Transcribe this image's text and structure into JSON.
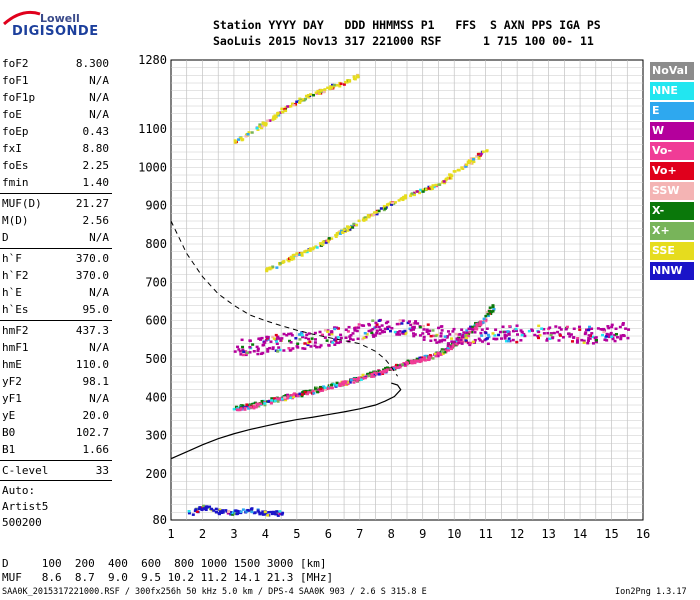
{
  "logo": {
    "line1": "Lowell",
    "line2": "DIGISONDE"
  },
  "header": {
    "line1": "Station YYYY DAY   DDD HHMMSS P1   FFS  S AXN PPS IGA PS",
    "line2": "SaoLuis 2015 Nov13 317 221000 RSF      1 715 100 00- 11"
  },
  "params": [
    {
      "name": "foF2",
      "value": "8.300"
    },
    {
      "name": "foF1",
      "value": "N/A"
    },
    {
      "name": "foF1p",
      "value": "N/A"
    },
    {
      "name": "foE",
      "value": "N/A"
    },
    {
      "name": "foEp",
      "value": "0.43"
    },
    {
      "name": "fxI",
      "value": "8.80"
    },
    {
      "name": "foEs",
      "value": "2.25"
    },
    {
      "name": "fmin",
      "value": "1.40"
    },
    {
      "name": "MUF(D)",
      "value": "21.27"
    },
    {
      "name": "M(D)",
      "value": "2.56"
    },
    {
      "name": "D",
      "value": "N/A"
    },
    {
      "name": "h`F",
      "value": "370.0"
    },
    {
      "name": "h`F2",
      "value": "370.0"
    },
    {
      "name": "h`E",
      "value": "N/A"
    },
    {
      "name": "h`Es",
      "value": "95.0"
    },
    {
      "name": "hmF2",
      "value": "437.3"
    },
    {
      "name": "hmF1",
      "value": "N/A"
    },
    {
      "name": "hmE",
      "value": "110.0"
    },
    {
      "name": "yF2",
      "value": "98.1"
    },
    {
      "name": "yF1",
      "value": "N/A"
    },
    {
      "name": "yE",
      "value": "20.0"
    },
    {
      "name": "B0",
      "value": "102.7"
    },
    {
      "name": "B1",
      "value": "1.66"
    },
    {
      "name": "C-level",
      "value": "33"
    }
  ],
  "autoscaling": {
    "line1": "Auto:",
    "line2": "Artist5",
    "line3": "500200"
  },
  "legend": [
    {
      "label": "NoVal",
      "bg": "#8c8c8c",
      "fg": "#ffffff"
    },
    {
      "label": "NNE",
      "bg": "#22e6f0",
      "fg": "#ffffff"
    },
    {
      "label": "E",
      "bg": "#2ea8ef",
      "fg": "#ffffff"
    },
    {
      "label": "W",
      "bg": "#b4009c",
      "fg": "#ffffff"
    },
    {
      "label": "Vo-",
      "bg": "#f03c96",
      "fg": "#ffffff"
    },
    {
      "label": "Vo+",
      "bg": "#e0001c",
      "fg": "#ffffff"
    },
    {
      "label": "SSW",
      "bg": "#f4b4b4",
      "fg": "#ffffff"
    },
    {
      "label": "X-",
      "bg": "#0a780a",
      "fg": "#ffffff"
    },
    {
      "label": "X+",
      "bg": "#78b45a",
      "fg": "#ffffff"
    },
    {
      "label": "SSE",
      "bg": "#e6dc1e",
      "fg": "#ffffff"
    },
    {
      "label": "NNW",
      "bg": "#1a14c8",
      "fg": "#ffffff"
    }
  ],
  "footer": {
    "line1": "D     100  200  400  600  800 1000 1500 3000 [km]",
    "line2": "MUF   8.6  8.7  9.0  9.5 10.2 11.2 14.1 21.3 [MHz]",
    "line3": "SAA0K_2015317221000.RSF / 300fx256h 50 kHz 5.0 km / DPS-4 SAA0K 903 / 2.6 S 315.8 E",
    "version": "Ion2Png 1.3.17"
  },
  "chart_data": {
    "type": "scatter",
    "x_ticks": [
      "1",
      "2",
      "3",
      "4",
      "5",
      "6",
      "7",
      "8",
      "9",
      "10",
      "11",
      "12",
      "13",
      "14",
      "15",
      "16"
    ],
    "y_ticks": [
      "80",
      "200",
      "300",
      "400",
      "500",
      "600",
      "700",
      "800",
      "900",
      "1000",
      "1100",
      "1280"
    ],
    "xlim": [
      1,
      16
    ],
    "ylim": [
      80,
      1280
    ],
    "grid": true,
    "legend_position": "right",
    "profile_line": [
      [
        1.0,
        240
      ],
      [
        1.5,
        258
      ],
      [
        2.0,
        276
      ],
      [
        2.5,
        292
      ],
      [
        3.0,
        305
      ],
      [
        3.5,
        316
      ],
      [
        4.0,
        325
      ],
      [
        4.5,
        334
      ],
      [
        5.0,
        342
      ],
      [
        5.5,
        348
      ],
      [
        6.0,
        355
      ],
      [
        6.5,
        362
      ],
      [
        7.0,
        370
      ],
      [
        7.5,
        380
      ],
      [
        7.8,
        390
      ],
      [
        8.1,
        402
      ],
      [
        8.3,
        420
      ],
      [
        8.2,
        432
      ],
      [
        8.0,
        437.3
      ]
    ],
    "dashed_line": [
      [
        1.0,
        860
      ],
      [
        1.5,
        775
      ],
      [
        2.0,
        715
      ],
      [
        2.5,
        670
      ],
      [
        3.0,
        640
      ],
      [
        3.5,
        615
      ],
      [
        4.0,
        600
      ],
      [
        4.5,
        587
      ],
      [
        5.0,
        575
      ],
      [
        5.5,
        565
      ],
      [
        6.0,
        556
      ],
      [
        6.5,
        548
      ],
      [
        7.0,
        540
      ],
      [
        7.5,
        520
      ],
      [
        7.8,
        500
      ],
      [
        8.0,
        480
      ],
      [
        8.2,
        455
      ]
    ],
    "traces": [
      {
        "name": "F-trace main",
        "color": "#0a780a",
        "points": [
          [
            3.0,
            375
          ],
          [
            3.5,
            383
          ],
          [
            4.0,
            392
          ],
          [
            4.5,
            402
          ],
          [
            5.0,
            412
          ],
          [
            5.5,
            422
          ],
          [
            6.0,
            432
          ],
          [
            6.5,
            443
          ],
          [
            7.0,
            455
          ],
          [
            7.5,
            468
          ],
          [
            8.0,
            480
          ],
          [
            8.5,
            495
          ],
          [
            9.0,
            505
          ],
          [
            9.5,
            520
          ],
          [
            10.0,
            545
          ],
          [
            10.5,
            580
          ],
          [
            11.0,
            615
          ],
          [
            11.2,
            640
          ]
        ]
      },
      {
        "name": "F-trace ordinary",
        "color": "#f03c96",
        "points": [
          [
            3.0,
            370
          ],
          [
            3.5,
            378
          ],
          [
            4.0,
            388
          ],
          [
            4.5,
            398
          ],
          [
            5.0,
            408
          ],
          [
            5.5,
            418
          ],
          [
            6.0,
            428
          ],
          [
            6.5,
            440
          ],
          [
            7.0,
            452
          ],
          [
            7.5,
            465
          ],
          [
            8.0,
            478
          ],
          [
            8.5,
            492
          ],
          [
            9.0,
            502
          ],
          [
            9.5,
            516
          ],
          [
            10.0,
            540
          ],
          [
            10.5,
            575
          ],
          [
            11.0,
            610
          ]
        ]
      },
      {
        "name": "2nd hop",
        "color": "#e6dc1e",
        "points": [
          [
            4.0,
            735
          ],
          [
            4.5,
            755
          ],
          [
            5.0,
            775
          ],
          [
            5.5,
            795
          ],
          [
            6.0,
            815
          ],
          [
            6.5,
            840
          ],
          [
            7.0,
            865
          ],
          [
            7.5,
            885
          ],
          [
            8.0,
            910
          ],
          [
            8.5,
            930
          ],
          [
            9.0,
            945
          ],
          [
            9.5,
            960
          ],
          [
            10.0,
            990
          ],
          [
            10.5,
            1020
          ],
          [
            11.0,
            1050
          ]
        ]
      },
      {
        "name": "3rd hop",
        "color": "#e6dc1e",
        "points": [
          [
            3.0,
            1070
          ],
          [
            3.5,
            1095
          ],
          [
            4.0,
            1120
          ],
          [
            4.5,
            1150
          ],
          [
            5.0,
            1175
          ],
          [
            5.5,
            1195
          ],
          [
            6.0,
            1210
          ],
          [
            6.5,
            1225
          ],
          [
            7.0,
            1245
          ]
        ]
      },
      {
        "name": "spread F",
        "color": "#b4009c",
        "points": [
          [
            3.0,
            530
          ],
          [
            4.0,
            540
          ],
          [
            5.0,
            550
          ],
          [
            6.0,
            560
          ],
          [
            7.0,
            575
          ],
          [
            8.0,
            590
          ],
          [
            9.0,
            575
          ],
          [
            10.0,
            560
          ],
          [
            11.0,
            565
          ],
          [
            12.0,
            570
          ],
          [
            13.5,
            570
          ],
          [
            14.5,
            565
          ],
          [
            15.5,
            580
          ]
        ]
      },
      {
        "name": "Es",
        "color": "#1a14c8",
        "points": [
          [
            1.5,
            100
          ],
          [
            2.0,
            115
          ],
          [
            2.5,
            105
          ],
          [
            3.0,
            102
          ],
          [
            3.5,
            108
          ],
          [
            4.0,
            100
          ],
          [
            4.5,
            100
          ]
        ]
      }
    ]
  }
}
